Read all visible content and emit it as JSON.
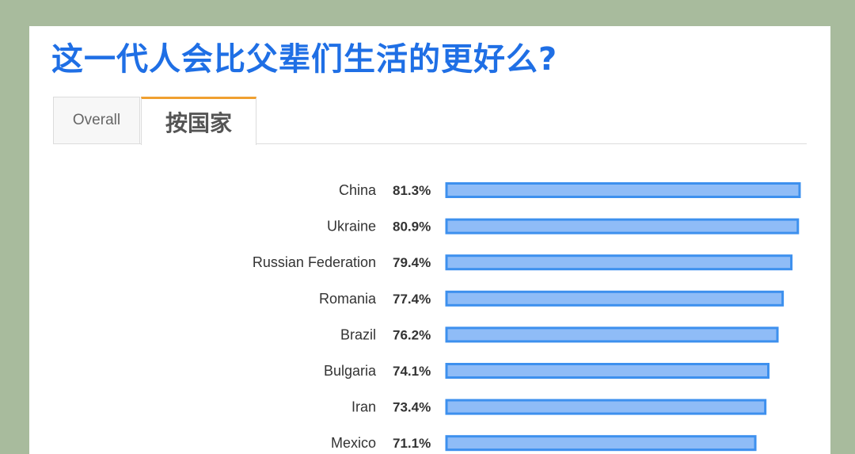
{
  "page": {
    "title": "这一代人会比父辈们生活的更好么?"
  },
  "tabs": [
    {
      "label": "Overall",
      "active": false
    },
    {
      "label": "按国家",
      "active": true
    }
  ],
  "colors": {
    "background": "#a8bb9d",
    "title": "#1f6fe5",
    "active_tab_accent": "#f0a030",
    "bar_fill": "#8fbcf7",
    "bar_stroke": "#3d90ee"
  },
  "chart_data": {
    "type": "bar",
    "orientation": "horizontal",
    "categories": [
      "China",
      "Ukraine",
      "Russian Federation",
      "Romania",
      "Brazil",
      "Bulgaria",
      "Iran",
      "Mexico"
    ],
    "values": [
      81.3,
      80.9,
      79.4,
      77.4,
      76.2,
      74.1,
      73.4,
      71.1
    ],
    "value_labels": [
      "81.3%",
      "80.9%",
      "79.4%",
      "77.4%",
      "76.2%",
      "74.1%",
      "73.4%",
      "71.1%"
    ],
    "unit": "%",
    "xlim": [
      0,
      81.3
    ],
    "grid": false,
    "legend": "none"
  }
}
